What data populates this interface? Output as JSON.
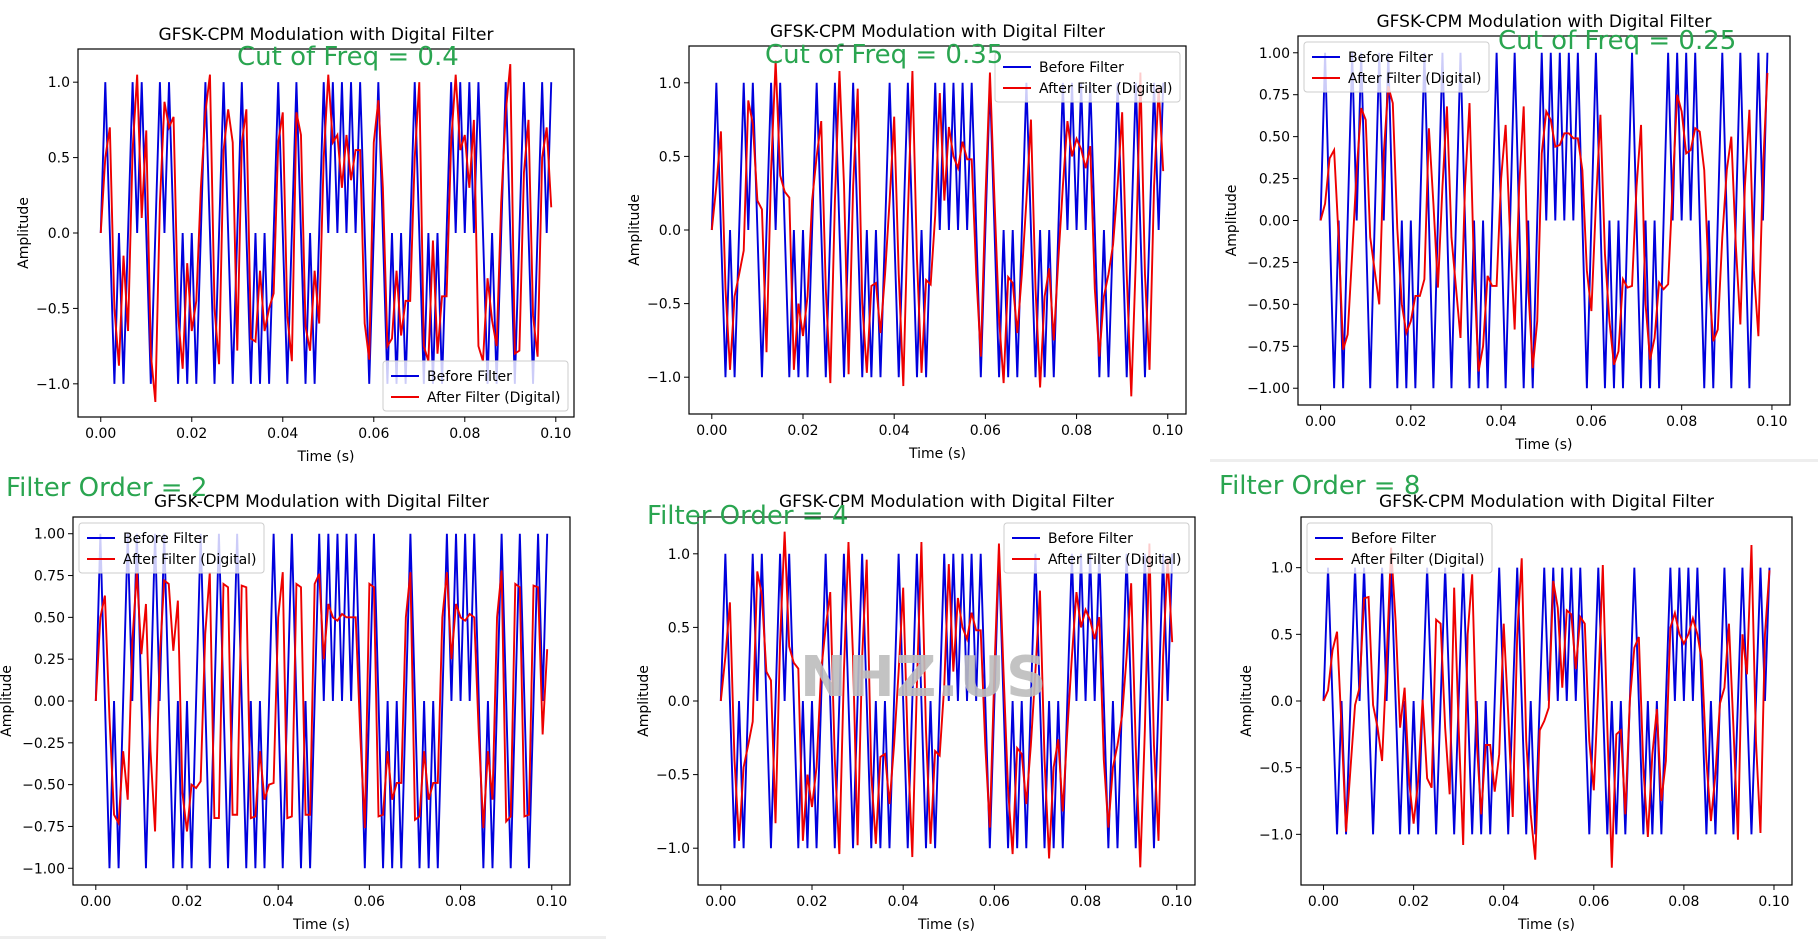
{
  "colors": {
    "before": "#0000dd",
    "after": "#ee0000",
    "annotation": "#2aa550",
    "watermark": "#bdbdbd"
  },
  "watermark": "NHZ.US",
  "chart_data": [
    {
      "id": "p1",
      "type": "line",
      "title": "GFSK-CPM Modulation with Digital Filter",
      "annotation": "Cut of Freq = 0.4",
      "xlabel": "Time (s)",
      "ylabel": "Amplitude",
      "xlim": [
        -0.005,
        0.104
      ],
      "ylim": [
        -1.22,
        1.22
      ],
      "xticks": [
        "0.00",
        "0.02",
        "0.04",
        "0.06",
        "0.08",
        "0.10"
      ],
      "yticks": [
        "−1.0",
        "−0.5",
        "0.0",
        "0.5",
        "1.0"
      ],
      "ytick_values": [
        -1,
        -0.5,
        0,
        0.5,
        1
      ],
      "legend": {
        "position": "lower-right",
        "entries": [
          "Before Filter",
          "After Filter (Digital)"
        ]
      },
      "series_after": [
        0,
        0.5,
        0.7,
        -0.5,
        -0.88,
        -0.15,
        -0.65,
        0.55,
        1.05,
        0.1,
        0.68,
        -0.8,
        -1.12,
        0.2,
        0.87,
        0.7,
        0.77,
        -0.55,
        -0.9,
        -0.2,
        -0.65,
        -0.45,
        0.3,
        0.8,
        1.05,
        -0.5,
        -0.87,
        0.55,
        0.82,
        0.6,
        -0.78,
        0.6,
        0.82,
        -0.7,
        -0.72,
        -0.25,
        -0.65,
        -0.5,
        -0.4,
        0.6,
        0.8,
        -0.55,
        -0.85,
        0.8,
        0.65,
        -0.62,
        -0.78,
        -0.25,
        -0.6,
        0.5,
        1.05,
        0.6,
        0.65,
        0.3,
        0.65,
        0.35,
        0.55,
        0.55,
        -0.6,
        -0.84,
        0.6,
        0.88,
        0.3,
        -0.75,
        -0.7,
        -0.25,
        -0.68,
        -0.45,
        -0.45,
        0.5,
        1.0,
        -0.75,
        -0.85,
        -0.05,
        -0.8,
        -0.42,
        -0.42,
        0.6,
        1.05,
        0.55,
        0.65,
        0.3,
        0.75,
        -0.75,
        -0.85,
        -0.3,
        -0.58,
        -0.75,
        0.2,
        0.8,
        1.12,
        -0.8,
        -0.78,
        0.4,
        0.75,
        -0.55,
        -0.82,
        0.5,
        0.7,
        0.17
      ]
    },
    {
      "id": "p2",
      "type": "line",
      "title": "GFSK-CPM Modulation with Digital Filter",
      "annotation": "Cut of Freq = 0.35",
      "xlabel": "Time (s)",
      "ylabel": "Amplitude",
      "xlim": [
        -0.005,
        0.104
      ],
      "ylim": [
        -1.25,
        1.25
      ],
      "xticks": [
        "0.00",
        "0.02",
        "0.04",
        "0.06",
        "0.08",
        "0.10"
      ],
      "yticks": [
        "−1.0",
        "−0.5",
        "0.0",
        "0.5",
        "1.0"
      ],
      "ytick_values": [
        -1,
        -0.5,
        0,
        0.5,
        1
      ],
      "legend": {
        "position": "upper-right",
        "entries": [
          "Before Filter",
          "After Filter (Digital)"
        ]
      },
      "series_after": [
        0,
        0.3,
        0.67,
        -0.4,
        -0.95,
        -0.45,
        -0.3,
        -0.14,
        0.88,
        0.72,
        0.2,
        0.14,
        -0.83,
        0.4,
        1.15,
        0.37,
        0.26,
        0.22,
        -0.95,
        -0.5,
        -0.72,
        -0.45,
        0.2,
        0.5,
        0.74,
        -0.4,
        -1.04,
        0.2,
        1.08,
        0.3,
        -0.98,
        0.3,
        0.96,
        -0.5,
        -0.97,
        -0.38,
        -0.36,
        -0.7,
        -0.3,
        0.2,
        0.77,
        -0.3,
        -1.06,
        0.1,
        1.08,
        -0.2,
        -0.97,
        -0.34,
        -0.37,
        0.1,
        0.93,
        0.2,
        0.7,
        0.5,
        0.42,
        0.6,
        0.48,
        0.48,
        -0.3,
        -0.86,
        0.2,
        1.07,
        0.2,
        -0.6,
        -1.04,
        -0.32,
        -0.36,
        -0.7,
        -0.3,
        0.2,
        0.75,
        -0.4,
        -1.07,
        -0.45,
        -0.26,
        -0.75,
        -0.2,
        0.3,
        0.74,
        0.5,
        0.62,
        0.55,
        0.42,
        0.57,
        -0.4,
        -0.86,
        -0.45,
        -0.3,
        -0.1,
        0.3,
        0.8,
        -0.3,
        -1.13,
        -0.2,
        1.07,
        -0.3,
        -0.95,
        0.3,
        0.97,
        0.4
      ]
    },
    {
      "id": "p3",
      "type": "line",
      "title": "GFSK-CPM Modulation with Digital Filter",
      "annotation": "Cut of Freq = 0.25",
      "xlabel": "Time (s)",
      "ylabel": "Amplitude",
      "xlim": [
        -0.005,
        0.104
      ],
      "ylim": [
        -1.1,
        1.1
      ],
      "xticks": [
        "0.00",
        "0.02",
        "0.04",
        "0.06",
        "0.08",
        "0.10"
      ],
      "yticks": [
        "−1.00",
        "−0.75",
        "−0.50",
        "−0.25",
        "0.00",
        "0.25",
        "0.50",
        "0.75",
        "1.00"
      ],
      "ytick_values": [
        -1,
        -0.75,
        -0.5,
        -0.25,
        0,
        0.25,
        0.5,
        0.75,
        1
      ],
      "legend": {
        "position": "upper-left",
        "entries": [
          "Before Filter",
          "After Filter (Digital)"
        ]
      },
      "series_after": [
        0,
        0.1,
        0.37,
        0.42,
        -0.1,
        -0.77,
        -0.68,
        -0.2,
        0.3,
        0.67,
        0.6,
        -0.1,
        -0.3,
        -0.5,
        0.4,
        0.8,
        0.7,
        -0.05,
        -0.5,
        -0.67,
        -0.6,
        -0.45,
        -0.45,
        -0.35,
        0.55,
        0.1,
        -0.4,
        0.2,
        0.68,
        -0.1,
        -0.4,
        -0.7,
        0.2,
        0.7,
        -0.3,
        -0.9,
        -0.75,
        -0.33,
        -0.39,
        -0.39,
        0.25,
        0.57,
        -0.1,
        -0.65,
        0.2,
        0.68,
        -0.4,
        -0.88,
        -0.6,
        0.4,
        0.65,
        0.6,
        0.44,
        0.45,
        0.52,
        0.52,
        0.49,
        0.49,
        0.3,
        -0.3,
        -0.54,
        0.1,
        0.63,
        -0.2,
        -0.6,
        -0.86,
        -0.78,
        -0.35,
        -0.4,
        -0.39,
        0.2,
        0.57,
        -0.5,
        -0.83,
        -0.7,
        -0.37,
        -0.41,
        -0.38,
        0.2,
        0.75,
        0.65,
        0.4,
        0.42,
        0.55,
        0.53,
        0.3,
        -0.35,
        -0.72,
        -0.65,
        -0.1,
        0.3,
        0.5,
        -0.15,
        -0.62,
        0.2,
        0.66,
        -0.3,
        -0.69,
        0.3,
        0.88
      ]
    },
    {
      "id": "p4",
      "type": "line",
      "title": "GFSK-CPM Modulation with Digital Filter",
      "annotation": "Filter Order = 2",
      "xlabel": "Time (s)",
      "ylabel": "Amplitude",
      "xlim": [
        -0.005,
        0.104
      ],
      "ylim": [
        -1.1,
        1.1
      ],
      "xticks": [
        "0.00",
        "0.02",
        "0.04",
        "0.06",
        "0.08",
        "0.10"
      ],
      "yticks": [
        "−1.00",
        "−0.75",
        "−0.50",
        "−0.25",
        "0.00",
        "0.25",
        "0.50",
        "0.75",
        "1.00"
      ],
      "ytick_values": [
        -1,
        -0.75,
        -0.5,
        -0.25,
        0,
        0.25,
        0.5,
        0.75,
        1
      ],
      "legend": {
        "position": "upper-left",
        "entries": [
          "Before Filter",
          "After Filter (Digital)"
        ]
      },
      "series_after": [
        0,
        0.5,
        0.63,
        -0.1,
        -0.68,
        -0.73,
        -0.3,
        -0.59,
        0.35,
        0.77,
        0.28,
        0.58,
        -0.3,
        -0.78,
        0.25,
        0.72,
        0.7,
        0.3,
        0.6,
        -0.55,
        -0.78,
        -0.5,
        -0.52,
        -0.48,
        0.4,
        0.77,
        -0.7,
        -0.7,
        0.7,
        0.68,
        -0.68,
        -0.68,
        0.69,
        0.68,
        -0.7,
        -0.69,
        -0.3,
        -0.59,
        -0.5,
        -0.49,
        0.5,
        0.77,
        -0.7,
        -0.69,
        0.7,
        0.68,
        -0.68,
        -0.68,
        0.7,
        0.76,
        0.25,
        0.58,
        0.5,
        0.48,
        0.52,
        0.5,
        0.5,
        0.5,
        -0.2,
        -0.76,
        0.7,
        0.68,
        -0.69,
        -0.68,
        -0.3,
        -0.59,
        -0.49,
        -0.49,
        0.5,
        0.77,
        -0.71,
        -0.69,
        -0.3,
        -0.59,
        -0.49,
        -0.49,
        0.5,
        0.77,
        0.25,
        0.58,
        0.5,
        0.48,
        0.52,
        0.5,
        -0.2,
        -0.76,
        -0.3,
        -0.59,
        0.5,
        0.78,
        -0.72,
        -0.69,
        0.7,
        0.68,
        -0.69,
        -0.68,
        0.69,
        0.68,
        -0.2,
        0.31
      ]
    },
    {
      "id": "p5",
      "type": "line",
      "title": "GFSK-CPM Modulation with Digital Filter",
      "annotation": "Filter Order = 4",
      "xlabel": "Time (s)",
      "ylabel": "Amplitude",
      "xlim": [
        -0.005,
        0.104
      ],
      "ylim": [
        -1.25,
        1.25
      ],
      "xticks": [
        "0.00",
        "0.02",
        "0.04",
        "0.06",
        "0.08",
        "0.10"
      ],
      "yticks": [
        "−1.0",
        "−0.5",
        "0.0",
        "0.5",
        "1.0"
      ],
      "ytick_values": [
        -1,
        -0.5,
        0,
        0.5,
        1
      ],
      "legend": {
        "position": "upper-right",
        "entries": [
          "Before Filter",
          "After Filter (Digital)"
        ]
      },
      "series_after": [
        0,
        0.3,
        0.67,
        -0.4,
        -0.95,
        -0.45,
        -0.3,
        -0.14,
        0.88,
        0.72,
        0.2,
        0.14,
        -0.83,
        0.4,
        1.15,
        0.37,
        0.26,
        0.22,
        -0.95,
        -0.5,
        -0.72,
        -0.45,
        0.2,
        0.5,
        0.74,
        -0.4,
        -1.04,
        0.2,
        1.08,
        0.3,
        -0.98,
        0.3,
        0.96,
        -0.5,
        -0.97,
        -0.38,
        -0.36,
        -0.7,
        -0.3,
        0.2,
        0.77,
        -0.3,
        -1.06,
        0.1,
        1.08,
        -0.2,
        -0.97,
        -0.34,
        -0.37,
        0.1,
        0.93,
        0.2,
        0.7,
        0.5,
        0.42,
        0.6,
        0.48,
        0.48,
        -0.3,
        -0.86,
        0.2,
        1.07,
        0.2,
        -0.6,
        -1.04,
        -0.32,
        -0.36,
        -0.7,
        -0.3,
        0.2,
        0.75,
        -0.4,
        -1.07,
        -0.45,
        -0.26,
        -0.75,
        -0.2,
        0.3,
        0.74,
        0.5,
        0.62,
        0.55,
        0.42,
        0.57,
        -0.4,
        -0.86,
        -0.45,
        -0.3,
        -0.1,
        0.3,
        0.8,
        -0.3,
        -1.13,
        -0.2,
        1.07,
        -0.3,
        -0.95,
        0.3,
        0.97,
        0.4
      ]
    },
    {
      "id": "p6",
      "type": "line",
      "title": "GFSK-CPM Modulation with Digital Filter",
      "annotation": "Filter Order = 8",
      "xlabel": "Time (s)",
      "ylabel": "Amplitude",
      "xlim": [
        -0.005,
        0.104
      ],
      "ylim": [
        -1.38,
        1.38
      ],
      "xticks": [
        "0.00",
        "0.02",
        "0.04",
        "0.06",
        "0.08",
        "0.10"
      ],
      "yticks": [
        "−1.0",
        "−0.5",
        "0.0",
        "0.5",
        "1.0"
      ],
      "ytick_values": [
        -1,
        -0.5,
        0,
        0.5,
        1
      ],
      "legend": {
        "position": "upper-left",
        "entries": [
          "Before Filter",
          "After Filter (Digital)"
        ]
      },
      "series_after": [
        0,
        0.08,
        0.38,
        0.52,
        -0.2,
        -0.98,
        -0.5,
        -0.03,
        0.1,
        0.77,
        0.78,
        -0.03,
        -0.2,
        -0.45,
        0.3,
        1.15,
        0.6,
        -0.2,
        0.1,
        -0.6,
        -0.92,
        -0.6,
        0.01,
        -0.58,
        -0.65,
        0.61,
        0.58,
        -0.2,
        -0.7,
        0.85,
        -0.2,
        -1.08,
        0.5,
        0.95,
        -0.3,
        -0.85,
        -0.33,
        -0.33,
        -0.68,
        -0.4,
        0.58,
        -0.1,
        -0.87,
        0.5,
        1.07,
        -0.3,
        -0.85,
        -1.19,
        -0.22,
        -0.15,
        -0.05,
        0.9,
        0.7,
        0.1,
        0.68,
        0.65,
        0.24,
        0.63,
        0.58,
        -0.3,
        -0.67,
        0.1,
        1.02,
        -0.2,
        -1.25,
        -0.25,
        -0.22,
        -0.85,
        0.0,
        0.4,
        0.48,
        -0.5,
        -1.02,
        -0.4,
        -0.06,
        -0.75,
        -0.45,
        0.55,
        0.66,
        0.5,
        0.43,
        0.5,
        0.62,
        0.5,
        0.3,
        -0.45,
        -0.9,
        -0.55,
        -0.02,
        0.1,
        0.58,
        -0.2,
        -1.04,
        0.5,
        0.2,
        1.17,
        -0.3,
        -0.99,
        0.5,
        0.98
      ]
    }
  ],
  "series_before": [
    0,
    1,
    0,
    -1,
    0,
    -1,
    0,
    1,
    0,
    1,
    0,
    -1,
    0,
    1,
    0,
    1,
    0,
    -1,
    0,
    -1,
    0,
    -1,
    0,
    1,
    0,
    -1,
    0,
    1,
    0,
    -1,
    0,
    1,
    0,
    -1,
    0,
    -1,
    0,
    -1,
    0,
    1,
    0,
    -1,
    0,
    1,
    0,
    -1,
    0,
    -1,
    0,
    1,
    0,
    1,
    0,
    1,
    0,
    1,
    0,
    1,
    0,
    -1,
    0,
    1,
    0,
    -1,
    0,
    -1,
    0,
    -1,
    0,
    1,
    0,
    -1,
    0,
    -1,
    0,
    -1,
    0,
    1,
    0,
    1,
    0,
    1,
    0,
    1,
    0,
    -1,
    0,
    -1,
    0,
    1,
    0,
    -1,
    0,
    1,
    0,
    -1,
    0,
    1,
    0,
    1
  ],
  "time_step": 0.001
}
